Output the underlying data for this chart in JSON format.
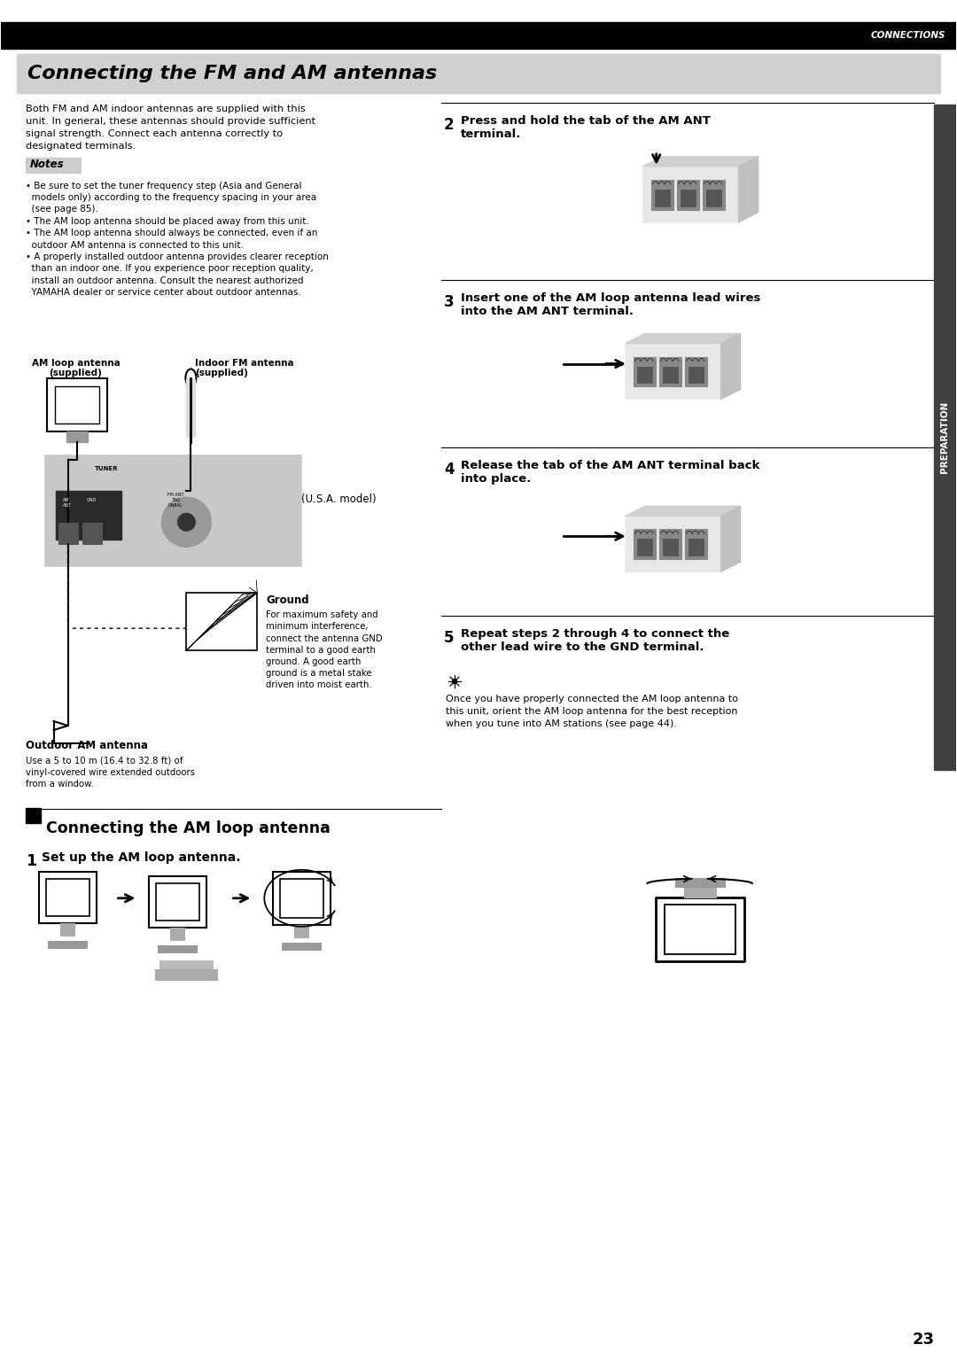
{
  "page_width": 10.8,
  "page_height": 15.26,
  "bg_color": "#ffffff",
  "top_bar_color": "#000000",
  "top_bar_text": "CONNECTIONS",
  "top_bar_text_color": "#ffffff",
  "title_bg_color": "#d0d0d0",
  "title_text": "Connecting the FM and AM antennas",
  "title_text_color": "#000000",
  "body_text_left": "Both FM and AM indoor antennas are supplied with this\nunit. In general, these antennas should provide sufficient\nsignal strength. Connect each antenna correctly to\ndesignated terminals.",
  "notes_label": "Notes",
  "notes_bg": "#cccccc",
  "notes_text": "• Be sure to set the tuner frequency step (Asia and General\n  models only) according to the frequency spacing in your area\n  (see page 85).\n• The AM loop antenna should be placed away from this unit.\n• The AM loop antenna should always be connected, even if an\n  outdoor AM antenna is connected to this unit.\n• A properly installed outdoor antenna provides clearer reception\n  than an indoor one. If you experience poor reception quality,\n  install an outdoor antenna. Consult the nearest authorized\n  YAMAHA dealer or service center about outdoor antennas.",
  "am_loop_label": "AM loop antenna\n(supplied)",
  "indoor_fm_label": "Indoor FM antenna\n(supplied)",
  "usa_model_label": "(U.S.A. model)",
  "ground_label": "Ground",
  "ground_text": "For maximum safety and\nminimum interference,\nconnect the antenna GND\nterminal to a good earth\nground. A good earth\nground is a metal stake\ndriven into moist earth.",
  "outdoor_am_label": "Outdoor AM antenna",
  "outdoor_am_text": "Use a 5 to 10 m (16.4 to 32.8 ft) of\nvinyl-covered wire extended outdoors\nfrom a window.",
  "section2_title": "Connecting the AM loop antenna",
  "step1_title": "Set up the AM loop antenna.",
  "step2_title": "Press and hold the tab of the AM ANT\nterminal.",
  "step3_title": "Insert one of the AM loop antenna lead wires\ninto the AM ANT terminal.",
  "step4_title": "Release the tab of the AM ANT terminal back\ninto place.",
  "step5_title": "Repeat steps 2 through 4 to connect the\nother lead wire to the GND terminal.",
  "tip_text": "Once you have properly connected the AM loop antenna to\nthis unit, orient the AM loop antenna for the best reception\nwhen you tune into AM stations (see page 44).",
  "page_number": "23",
  "preparation_label": "PREPARATION",
  "sidebar_color": "#404040"
}
